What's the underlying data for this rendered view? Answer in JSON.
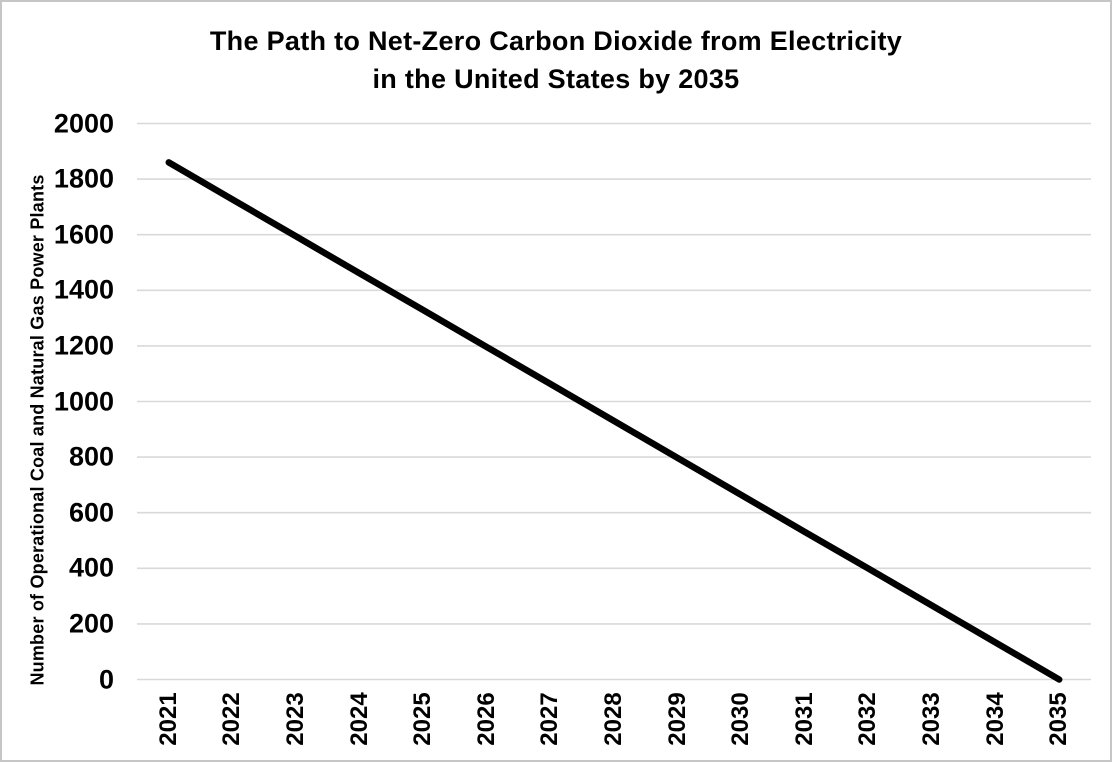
{
  "title": {
    "line1": "The Path to Net-Zero Carbon Dioxide from Electricity",
    "line2": "in the United States by 2035"
  },
  "chart_data": {
    "type": "line",
    "title": "The Path to Net-Zero Carbon Dioxide from Electricity in the United States by 2035",
    "xlabel": "",
    "ylabel": "Number of Operational Coal and Natural Gas Power Plants",
    "x": [
      2021,
      2022,
      2023,
      2024,
      2025,
      2026,
      2027,
      2028,
      2029,
      2030,
      2031,
      2032,
      2033,
      2034,
      2035
    ],
    "series": [
      {
        "name": "Operational coal and natural gas power plants",
        "values": [
          1860,
          1727,
          1594,
          1461,
          1329,
          1196,
          1063,
          930,
          797,
          664,
          531,
          399,
          266,
          133,
          0
        ]
      }
    ],
    "ylim": [
      0,
      2000
    ],
    "yticks": [
      0,
      200,
      400,
      600,
      800,
      1000,
      1200,
      1400,
      1600,
      1800,
      2000
    ],
    "grid": "horizontal",
    "legend": "none",
    "line_color": "#000000",
    "line_width": 6.5,
    "gridline_color": "#d9d9d9",
    "text_color": "#000000"
  }
}
